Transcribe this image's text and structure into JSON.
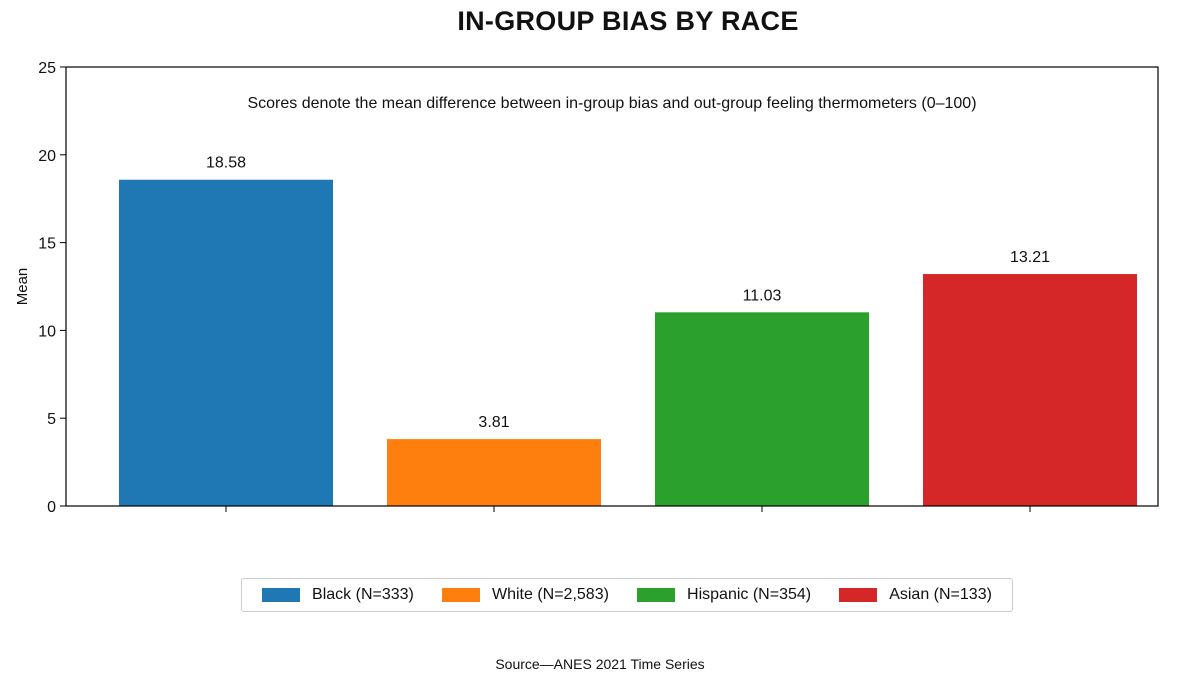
{
  "chart_data": {
    "type": "bar",
    "title": "IN-GROUP BIAS BY RACE",
    "subtitle": "Scores denote the mean difference between in-group bias and out-group feeling thermometers (0–100)",
    "ylabel": "Mean",
    "xlabel": "",
    "ylim": [
      0,
      25
    ],
    "yticks": [
      0,
      5,
      10,
      15,
      20,
      25
    ],
    "grid": false,
    "legend_position": "bottom",
    "categories": [
      "Black (N=333)",
      "White (N=2,583)",
      "Hispanic (N=354)",
      "Asian (N=133)"
    ],
    "values": [
      18.58,
      3.81,
      11.03,
      13.21
    ],
    "value_labels": [
      "18.58",
      "3.81",
      "11.03",
      "13.21"
    ],
    "colors": [
      "#1f77b4",
      "#ff7f0e",
      "#2ca02c",
      "#d62728"
    ],
    "source": "Source—ANES 2021 Time Series"
  }
}
